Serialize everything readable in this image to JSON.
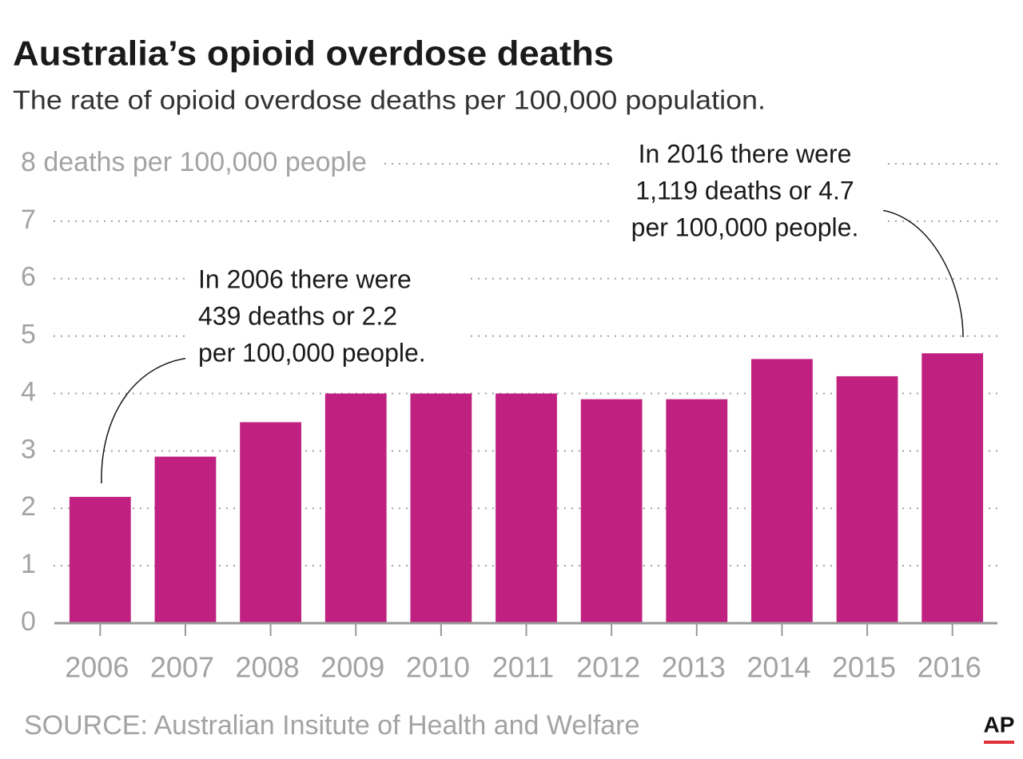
{
  "chart_data": {
    "type": "bar",
    "title": "Australia’s opioid overdose deaths",
    "subtitle": "The rate of opioid overdose deaths  per 100,000 population.",
    "categories": [
      "2006",
      "2007",
      "2008",
      "2009",
      "2010",
      "2011",
      "2012",
      "2013",
      "2014",
      "2015",
      "2016"
    ],
    "values": [
      2.2,
      2.9,
      3.5,
      4.0,
      4.0,
      4.0,
      3.9,
      3.9,
      4.6,
      4.3,
      4.7
    ],
    "color": "#c02080",
    "ylim": [
      0,
      8
    ],
    "yticks": [
      0,
      1,
      2,
      3,
      4,
      5,
      6,
      7,
      {
        "value": 8,
        "label": "8 deaths per 100,000 people"
      }
    ],
    "grid": true,
    "annotations": [
      {
        "lines": [
          "In 2006 there were",
          "439 deaths or 2.2",
          "per 100,000 people."
        ]
      },
      {
        "lines": [
          "In 2016 there were",
          "1,119 deaths or 4.7",
          "per 100,000 people."
        ]
      }
    ],
    "source": "SOURCE: Australian Insitute of Health and Welfare",
    "logo": "AP"
  }
}
